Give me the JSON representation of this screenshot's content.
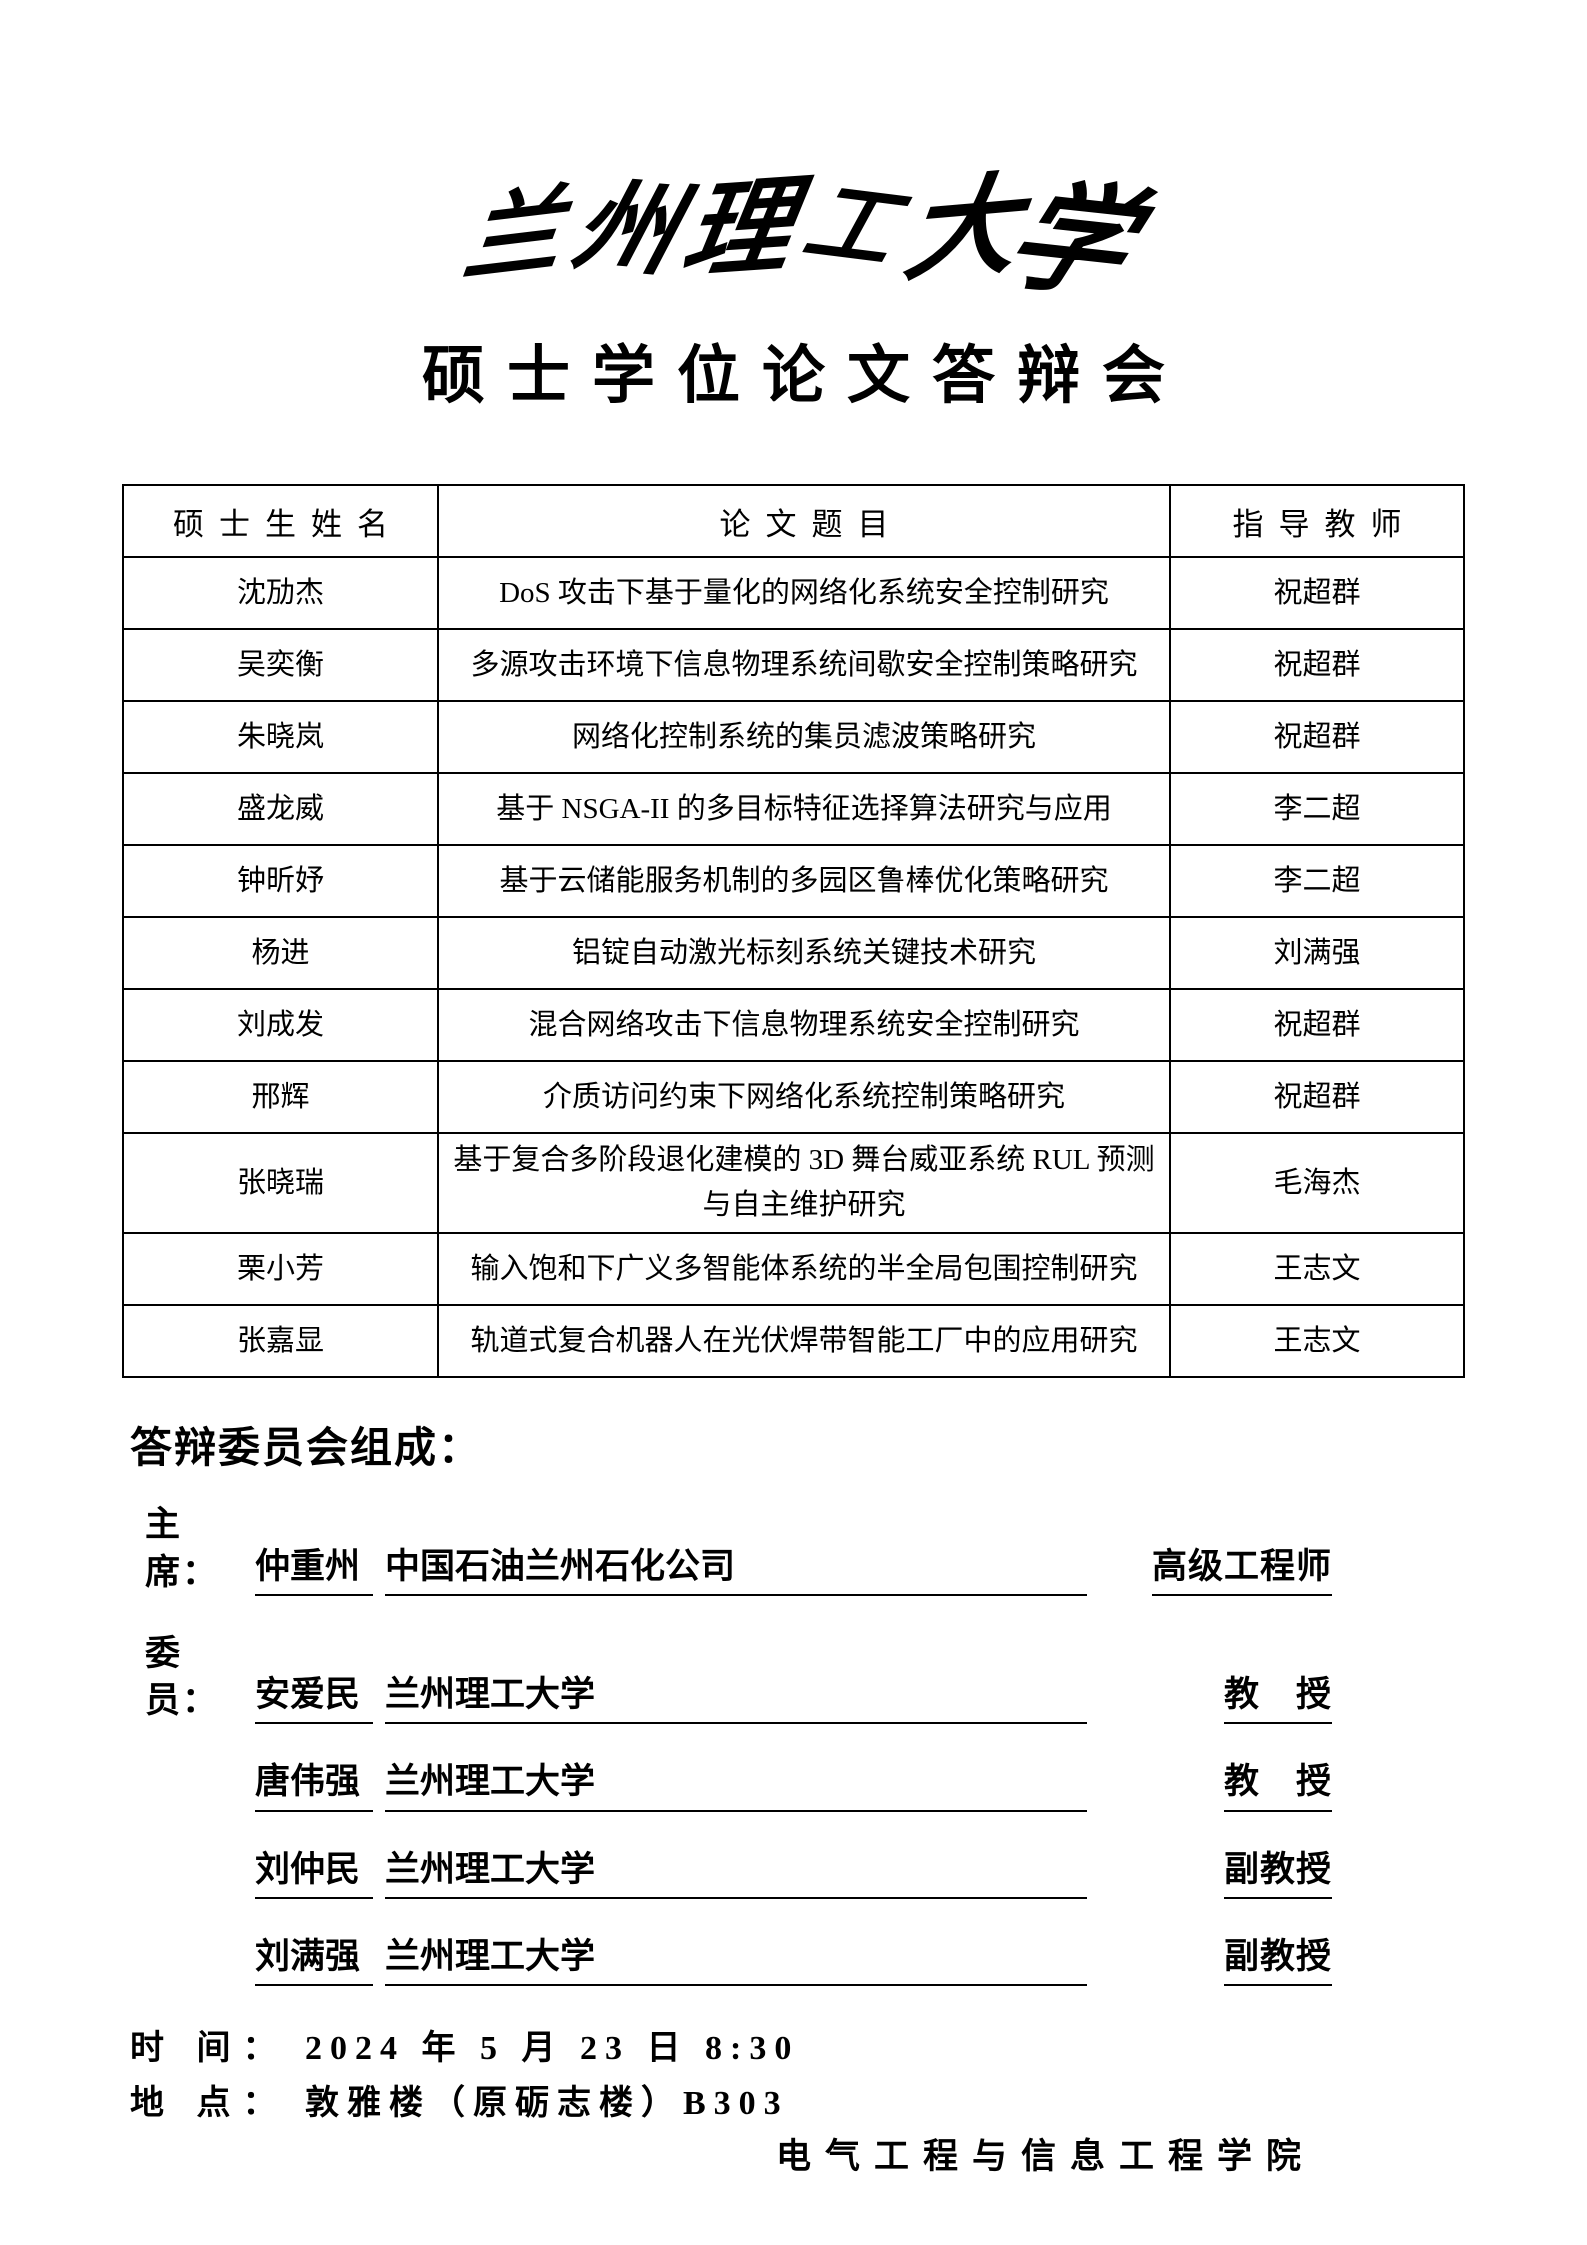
{
  "page": {
    "logo_text": "兰州理工大学",
    "title": "硕士学位论文答辩会"
  },
  "table": {
    "headers": [
      "硕士生姓名",
      "论文题目",
      "指导教师"
    ],
    "rows": [
      {
        "name": "沈劢杰",
        "title": "DoS 攻击下基于量化的网络化系统安全控制研究",
        "advisor": "祝超群"
      },
      {
        "name": "吴奕衡",
        "title": "多源攻击环境下信息物理系统间歇安全控制策略研究",
        "advisor": "祝超群"
      },
      {
        "name": "朱晓岚",
        "title": "网络化控制系统的集员滤波策略研究",
        "advisor": "祝超群"
      },
      {
        "name": "盛龙威",
        "title": "基于 NSGA-II 的多目标特征选择算法研究与应用",
        "advisor": "李二超"
      },
      {
        "name": "钟昕妤",
        "title": "基于云储能服务机制的多园区鲁棒优化策略研究",
        "advisor": "李二超"
      },
      {
        "name": "杨进",
        "title": "铝锭自动激光标刻系统关键技术研究",
        "advisor": "刘满强"
      },
      {
        "name": "刘成发",
        "title": "混合网络攻击下信息物理系统安全控制研究",
        "advisor": "祝超群"
      },
      {
        "name": "邢辉",
        "title": "介质访问约束下网络化系统控制策略研究",
        "advisor": "祝超群"
      },
      {
        "name": "张晓瑞",
        "title": "基于复合多阶段退化建模的 3D 舞台威亚系统 RUL 预测与自主维护研究",
        "advisor": "毛海杰"
      },
      {
        "name": "栗小芳",
        "title": "输入饱和下广义多智能体系统的半全局包围控制研究",
        "advisor": "王志文"
      },
      {
        "name": "张嘉显",
        "title": "轨道式复合机器人在光伏焊带智能工厂中的应用研究",
        "advisor": "王志文"
      }
    ]
  },
  "committee": {
    "heading": "答辩委员会组成：",
    "members": [
      {
        "role": "主席：",
        "name": "仲重州",
        "org": "中国石油兰州石化公司",
        "title": "高级工程师"
      },
      {
        "role": "委员：",
        "name": "安爱民",
        "org": "兰州理工大学",
        "title": "教　授"
      },
      {
        "role": "",
        "name": "唐伟强",
        "org": "兰州理工大学",
        "title": "教　授"
      },
      {
        "role": "",
        "name": "刘仲民",
        "org": "兰州理工大学",
        "title": "副教授"
      },
      {
        "role": "",
        "name": "刘满强",
        "org": "兰州理工大学",
        "title": "副教授"
      }
    ]
  },
  "footer": {
    "time_label": "时 间：",
    "time_value": "2024 年 5 月 23 日 8:30",
    "location_label": "地 点：",
    "location_value": "敦雅楼（原砺志楼）B303",
    "department": "电气工程与信息工程学院"
  }
}
